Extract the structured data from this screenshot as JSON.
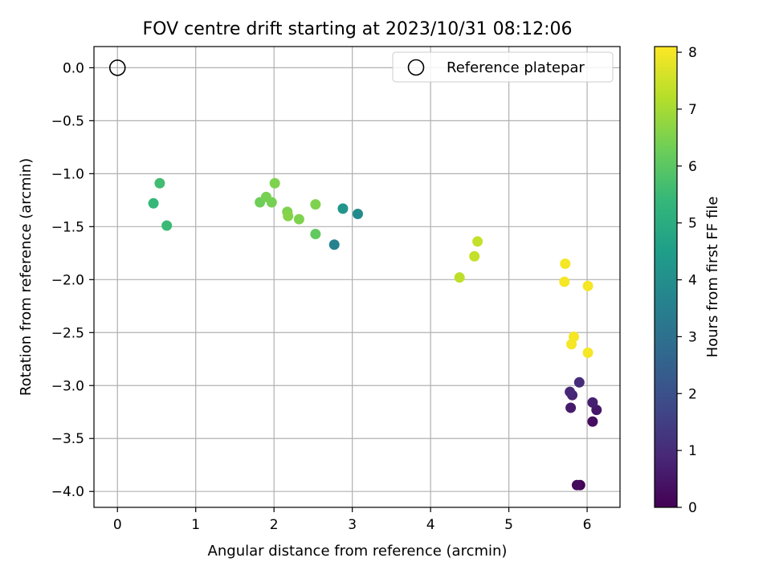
{
  "chart_data": {
    "type": "scatter",
    "title": "FOV centre drift starting at 2023/10/31 08:12:06",
    "xlabel": "Angular distance from reference (arcmin)",
    "ylabel": "Rotation from reference (arcmin)",
    "xlim": [
      -0.3,
      6.42
    ],
    "ylim": [
      -4.15,
      0.2
    ],
    "x_ticks": [
      0,
      1,
      2,
      3,
      4,
      5,
      6
    ],
    "x_tick_labels": [
      "0",
      "1",
      "2",
      "3",
      "4",
      "5",
      "6"
    ],
    "y_ticks": [
      0.0,
      -0.5,
      -1.0,
      -1.5,
      -2.0,
      -2.5,
      -3.0,
      -3.5,
      -4.0
    ],
    "y_tick_labels": [
      "0.0",
      "−0.5",
      "−1.0",
      "−1.5",
      "−2.0",
      "−2.5",
      "−3.0",
      "−3.5",
      "−4.0"
    ],
    "grid": true,
    "legend": {
      "placement": "top-right",
      "entries": [
        "Reference platepar"
      ]
    },
    "reference_point": {
      "x": 0.0,
      "y": 0.0,
      "marker": "open-circle"
    },
    "colorbar": {
      "label": "Hours from first FF file",
      "range": [
        0,
        8.1
      ],
      "ticks": [
        0,
        1,
        2,
        3,
        4,
        5,
        6,
        7,
        8
      ],
      "tick_labels": [
        "0",
        "1",
        "2",
        "3",
        "4",
        "5",
        "6",
        "7",
        "8"
      ],
      "colormap": "viridis",
      "colors": [
        "#440154",
        "#482878",
        "#3e4a89",
        "#31688e",
        "#26828e",
        "#1f9e89",
        "#35b779",
        "#6ece58",
        "#b5de2b",
        "#fde725"
      ]
    },
    "points": [
      {
        "x": 5.91,
        "y": -3.94,
        "c": 0.05
      },
      {
        "x": 5.87,
        "y": -3.94,
        "c": 0.2
      },
      {
        "x": 6.07,
        "y": -3.34,
        "c": 0.3
      },
      {
        "x": 6.12,
        "y": -3.23,
        "c": 0.5
      },
      {
        "x": 6.07,
        "y": -3.16,
        "c": 0.7
      },
      {
        "x": 5.79,
        "y": -3.21,
        "c": 0.6
      },
      {
        "x": 5.81,
        "y": -3.09,
        "c": 0.8
      },
      {
        "x": 5.78,
        "y": -3.06,
        "c": 0.9
      },
      {
        "x": 5.9,
        "y": -2.97,
        "c": 1.0
      },
      {
        "x": 2.77,
        "y": -1.67,
        "c": 3.6
      },
      {
        "x": 2.88,
        "y": -1.33,
        "c": 4.2
      },
      {
        "x": 3.07,
        "y": -1.38,
        "c": 3.9
      },
      {
        "x": 0.46,
        "y": -1.28,
        "c": 5.4
      },
      {
        "x": 0.54,
        "y": -1.09,
        "c": 5.6
      },
      {
        "x": 0.63,
        "y": -1.49,
        "c": 5.5
      },
      {
        "x": 2.53,
        "y": -1.57,
        "c": 6.1
      },
      {
        "x": 1.82,
        "y": -1.27,
        "c": 6.3
      },
      {
        "x": 1.9,
        "y": -1.22,
        "c": 6.4
      },
      {
        "x": 1.97,
        "y": -1.27,
        "c": 6.4
      },
      {
        "x": 2.01,
        "y": -1.09,
        "c": 6.5
      },
      {
        "x": 2.17,
        "y": -1.36,
        "c": 6.5
      },
      {
        "x": 2.18,
        "y": -1.4,
        "c": 6.6
      },
      {
        "x": 2.32,
        "y": -1.43,
        "c": 6.5
      },
      {
        "x": 2.53,
        "y": -1.29,
        "c": 6.5
      },
      {
        "x": 4.37,
        "y": -1.98,
        "c": 7.3
      },
      {
        "x": 4.56,
        "y": -1.78,
        "c": 7.4
      },
      {
        "x": 4.6,
        "y": -1.64,
        "c": 7.4
      },
      {
        "x": 5.72,
        "y": -1.85,
        "c": 8.0
      },
      {
        "x": 5.71,
        "y": -2.02,
        "c": 8.0
      },
      {
        "x": 6.01,
        "y": -2.06,
        "c": 8.0
      },
      {
        "x": 5.8,
        "y": -2.61,
        "c": 8.0
      },
      {
        "x": 5.83,
        "y": -2.54,
        "c": 8.0
      },
      {
        "x": 6.01,
        "y": -2.69,
        "c": 8.0
      }
    ]
  }
}
